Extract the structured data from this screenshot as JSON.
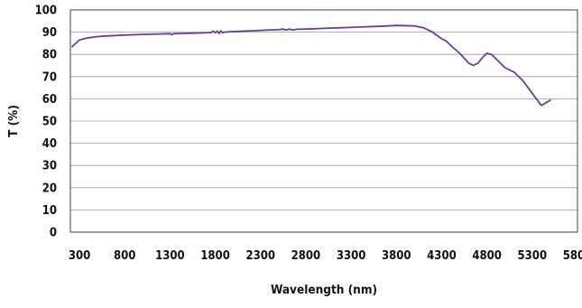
{
  "chart_data": {
    "type": "line",
    "title": "",
    "xlabel": "Wavelength (nm)",
    "ylabel": "T (%)",
    "xlim": [
      200,
      5800
    ],
    "ylim": [
      0,
      100
    ],
    "x_ticks": [
      300,
      800,
      1300,
      1800,
      2300,
      2800,
      3300,
      3800,
      4300,
      4800,
      5300,
      5800
    ],
    "y_ticks": [
      0,
      10,
      20,
      30,
      40,
      50,
      60,
      70,
      80,
      90,
      100
    ],
    "grid": true,
    "legend": "none",
    "series_color": "#6a3d9a",
    "series": [
      {
        "x": [
          220,
          260,
          300,
          400,
          500,
          600,
          800,
          1000,
          1200,
          1300,
          1320,
          1340,
          1400,
          1600,
          1750,
          1780,
          1800,
          1820,
          1840,
          1860,
          1880,
          1900,
          2000,
          2200,
          2400,
          2500,
          2550,
          2580,
          2620,
          2660,
          2700,
          2800,
          3000,
          3200,
          3400,
          3600,
          3800,
          4000,
          4100,
          4200,
          4300,
          4350,
          4400,
          4500,
          4600,
          4650,
          4700,
          4750,
          4800,
          4850,
          4900,
          4950,
          5000,
          5100,
          5200,
          5300,
          5400,
          5500
        ],
        "y": [
          83.5,
          85,
          86.5,
          87.5,
          88,
          88.3,
          88.7,
          89,
          89.2,
          89.3,
          88.9,
          89.3,
          89.4,
          89.6,
          89.8,
          90.4,
          89.7,
          90.5,
          89.4,
          90.6,
          89.8,
          90,
          90.3,
          90.6,
          91,
          91.1,
          91.4,
          91,
          91.4,
          91,
          91.3,
          91.4,
          91.7,
          92,
          92.3,
          92.6,
          93,
          92.8,
          92,
          90,
          87,
          86,
          84,
          80.5,
          76,
          75,
          76,
          78.5,
          80.5,
          80,
          78,
          76,
          74,
          72,
          68,
          62.5,
          57,
          59.4
        ]
      }
    ]
  }
}
